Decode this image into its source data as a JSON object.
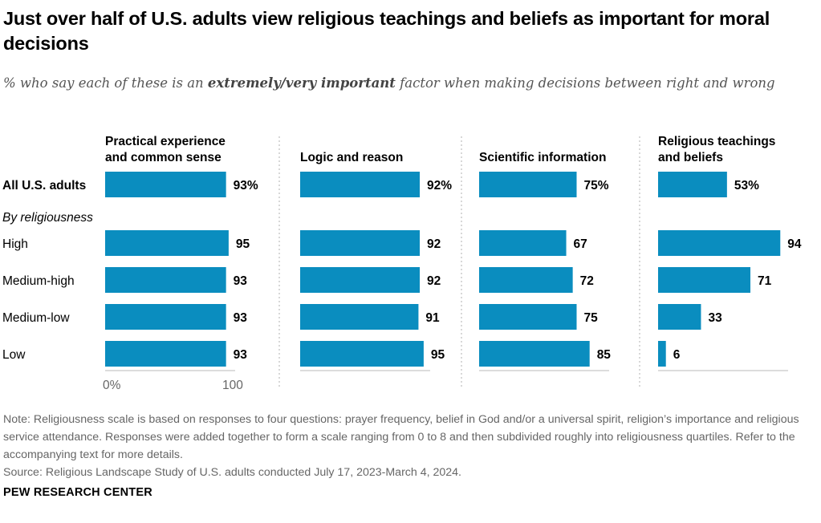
{
  "title": "Just over half of U.S. adults view religious teachings and beliefs as important for moral decisions",
  "subtitle_parts": [
    "% who say each of these is an ",
    "extremely/very important",
    " factor when making decisions between right and wrong"
  ],
  "group_label": "By religiousness",
  "axis_labels": [
    "0%",
    "100"
  ],
  "colors": {
    "bar": "#0a8dbf",
    "baseline": "#c8c8c8",
    "divider": "#bdbdbd"
  },
  "chart_data": {
    "type": "bar",
    "orientation": "horizontal",
    "categories": [
      "All U.S. adults",
      "High",
      "Medium-high",
      "Medium-low",
      "Low"
    ],
    "value_labels": [
      [
        "93%",
        "95",
        "93",
        "93",
        "93"
      ],
      [
        "92%",
        "92",
        "92",
        "91",
        "95"
      ],
      [
        "75%",
        "67",
        "72",
        "75",
        "85"
      ],
      [
        "53%",
        "94",
        "71",
        "33",
        "6"
      ]
    ],
    "series": [
      {
        "name": "Practical experience and common sense",
        "title_lines": [
          "Practical experience",
          "and common sense"
        ],
        "values": [
          93,
          95,
          93,
          93,
          93
        ]
      },
      {
        "name": "Logic and reason",
        "title_lines": [
          "Logic and reason"
        ],
        "values": [
          92,
          92,
          92,
          91,
          95
        ]
      },
      {
        "name": "Scientific information",
        "title_lines": [
          "Scientific information"
        ],
        "values": [
          75,
          67,
          72,
          75,
          85
        ]
      },
      {
        "name": "Religious teachings and beliefs",
        "title_lines": [
          "Religious teachings",
          "and beliefs"
        ],
        "values": [
          53,
          94,
          71,
          33,
          6
        ]
      }
    ],
    "xlim": [
      0,
      100
    ]
  },
  "note": "Note: Religiousness scale is based on responses to four questions: prayer frequency, belief in God and/or a universal spirit, religion’s importance and religious service attendance. Responses were added together to form a scale ranging from 0 to 8 and then subdivided roughly into religiousness quartiles. Refer to the accompanying text for more details.",
  "source": "Source: Religious Landscape Study of U.S. adults conducted July 17, 2023-March 4, 2024.",
  "brand": "PEW RESEARCH CENTER"
}
